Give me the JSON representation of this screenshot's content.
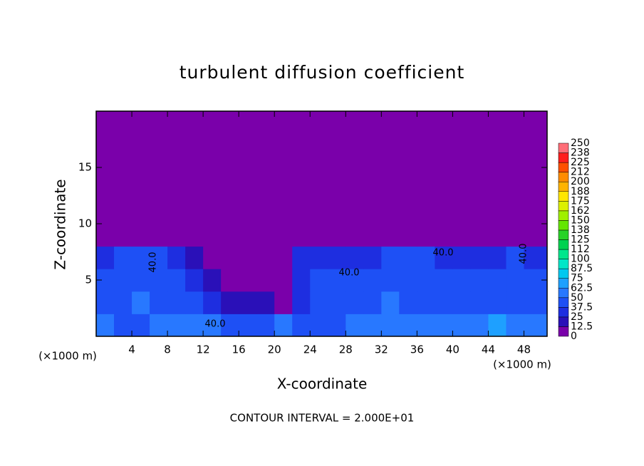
{
  "chart_data": {
    "type": "contour",
    "title": "turbulent diffusion coefficient",
    "xlabel": "X-coordinate",
    "ylabel": "Z-coordinate",
    "x_unit": "(×1000 m)",
    "footer": "CONTOUR INTERVAL = 2.000E+01",
    "xlim": [
      0,
      50.6
    ],
    "ylim": [
      0,
      20
    ],
    "xticks": [
      4,
      8,
      12,
      16,
      20,
      24,
      28,
      32,
      36,
      40,
      44,
      48
    ],
    "yticks": [
      5,
      10,
      15
    ],
    "x_edges": [
      0,
      2,
      4,
      6,
      8,
      10,
      12,
      14,
      16,
      18,
      20,
      22,
      24,
      26,
      28,
      30,
      32,
      34,
      36,
      38,
      40,
      42,
      44,
      46,
      48,
      50.6
    ],
    "y_edges": [
      0,
      2,
      4,
      6,
      8,
      10,
      20
    ],
    "z": [
      [
        50,
        45,
        45,
        50,
        55,
        50,
        50,
        45,
        40,
        45,
        50,
        45,
        40,
        45,
        55,
        50,
        55,
        60,
        55,
        50,
        55,
        60,
        65,
        55,
        50
      ],
      [
        40,
        45,
        55,
        45,
        45,
        40,
        35,
        20,
        15,
        15,
        10,
        30,
        45,
        40,
        40,
        45,
        50,
        45,
        45,
        40,
        40,
        45,
        40,
        45,
        45
      ],
      [
        40,
        45,
        40,
        45,
        45,
        35,
        15,
        10,
        10,
        10,
        5,
        35,
        40,
        40,
        45,
        40,
        45,
        45,
        40,
        40,
        45,
        40,
        40,
        45,
        40
      ],
      [
        35,
        40,
        40,
        40,
        35,
        20,
        5,
        5,
        5,
        5,
        5,
        30,
        35,
        30,
        30,
        35,
        40,
        40,
        40,
        35,
        30,
        30,
        35,
        40,
        35
      ],
      [
        0,
        0,
        5,
        5,
        0,
        0,
        0,
        0,
        0,
        0,
        0,
        0,
        0,
        0,
        0,
        0,
        0,
        0,
        0,
        0,
        0,
        0,
        0,
        0,
        0
      ],
      [
        0,
        0,
        0,
        0,
        0,
        0,
        0,
        0,
        0,
        0,
        0,
        0,
        0,
        0,
        0,
        0,
        0,
        0,
        0,
        0,
        0,
        0,
        0,
        0,
        0
      ]
    ],
    "contour_labels": [
      "40.0",
      "40.0",
      "40.0",
      "40.0",
      "40.0"
    ],
    "colorbar": {
      "levels": [
        0,
        12.5,
        25,
        37.5,
        50,
        62.5,
        75,
        87.5,
        100,
        112,
        125,
        138,
        150,
        162,
        175,
        188,
        200,
        212,
        225,
        238,
        250
      ],
      "colors": [
        "#7a00aa",
        "#2a10b8",
        "#1e2ee0",
        "#1e50f5",
        "#2878ff",
        "#1ea0ff",
        "#00c8f0",
        "#00e6c8",
        "#00e68c",
        "#00d250",
        "#28d228",
        "#64e600",
        "#a0f000",
        "#dcf000",
        "#ffe600",
        "#ffb400",
        "#ff8c00",
        "#ff5000",
        "#ff1e1e",
        "#ff6e78"
      ]
    }
  }
}
